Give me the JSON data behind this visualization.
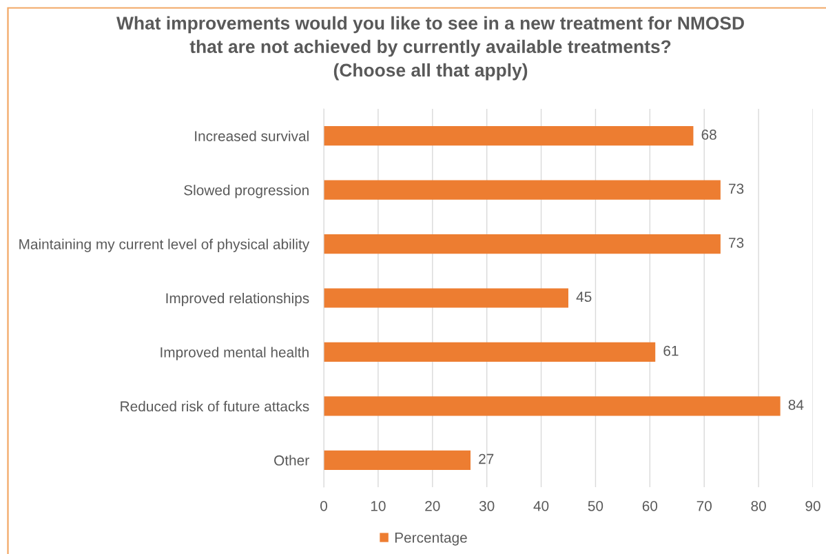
{
  "chart_data": {
    "type": "bar",
    "orientation": "horizontal",
    "title": "What improvements would you like to see in a new treatment for NMOSD\nthat are not achieved by currently available treatments?\n(Choose all that apply)",
    "categories": [
      "Increased survival",
      "Slowed progression",
      "Maintaining my current level of physical ability",
      "Improved relationships",
      "Improved mental health",
      "Reduced risk of future attacks",
      "Other"
    ],
    "series": [
      {
        "name": "Percentage",
        "color": "#ed7d31",
        "values": [
          68,
          73,
          73,
          45,
          61,
          84,
          27
        ]
      }
    ],
    "xlim": [
      0,
      90
    ],
    "xticks": [
      0,
      10,
      20,
      30,
      40,
      50,
      60,
      70,
      80,
      90
    ],
    "grid": "x",
    "legend": "bottom",
    "data_labels": true
  }
}
